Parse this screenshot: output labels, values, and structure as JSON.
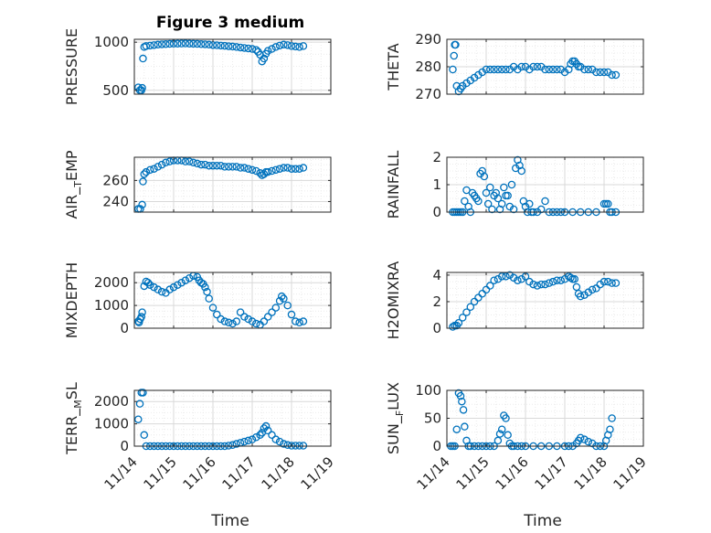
{
  "figure": {
    "title": "Figure 3 medium",
    "xlabel": "Time"
  },
  "x_ticks": [
    "11/14",
    "11/15",
    "11/16",
    "11/17",
    "11/18",
    "11/19"
  ],
  "colors": {
    "marker": "#0072BD",
    "axes": "#262626",
    "grid": "#e0e0e0",
    "background": "#ffffff"
  },
  "chart_data": [
    {
      "type": "scatter",
      "ylabel": "PRESSURE",
      "ylim": [
        460,
        1030
      ],
      "yticks": [
        500,
        1000
      ],
      "x_range": [
        "11/14",
        "11/19"
      ],
      "grid": true,
      "series": [
        {
          "x": [
            14.1,
            14.14,
            14.18,
            14.2,
            14.22,
            14.25,
            14.3,
            14.4,
            14.5,
            14.6,
            14.7,
            14.8,
            14.9,
            15.0,
            15.1,
            15.2,
            15.3,
            15.4,
            15.5,
            15.6,
            15.7,
            15.8,
            15.9,
            16.0,
            16.1,
            16.2,
            16.3,
            16.4,
            16.5,
            16.6,
            16.7,
            16.8,
            16.9,
            17.0,
            17.1,
            17.15,
            17.2,
            17.25,
            17.3,
            17.35,
            17.4,
            17.5,
            17.6,
            17.7,
            17.8,
            17.9,
            18.0,
            18.1,
            18.2,
            18.3
          ],
          "y": [
            530,
            500,
            500,
            525,
            830,
            950,
            960,
            965,
            970,
            975,
            978,
            980,
            982,
            985,
            985,
            986,
            987,
            985,
            984,
            982,
            980,
            978,
            975,
            970,
            968,
            965,
            962,
            958,
            955,
            950,
            945,
            940,
            935,
            930,
            920,
            900,
            870,
            800,
            830,
            880,
            910,
            930,
            950,
            965,
            975,
            970,
            960,
            955,
            950,
            960
          ]
        }
      ]
    },
    {
      "type": "scatter",
      "ylabel": "THETA",
      "ylim": [
        270,
        290
      ],
      "yticks": [
        270,
        280,
        290
      ],
      "x_range": [
        "11/14",
        "11/19"
      ],
      "grid": true,
      "series": [
        {
          "x": [
            14.15,
            14.18,
            14.2,
            14.22,
            14.25,
            14.3,
            14.35,
            14.4,
            14.5,
            14.6,
            14.7,
            14.8,
            14.9,
            15.0,
            15.1,
            15.2,
            15.3,
            15.4,
            15.5,
            15.6,
            15.7,
            15.8,
            15.9,
            16.0,
            16.1,
            16.2,
            16.3,
            16.4,
            16.5,
            16.6,
            16.7,
            16.8,
            16.9,
            17.0,
            17.1,
            17.15,
            17.2,
            17.25,
            17.3,
            17.35,
            17.4,
            17.5,
            17.6,
            17.7,
            17.8,
            17.9,
            18.0,
            18.1,
            18.2,
            18.3
          ],
          "y": [
            279,
            284,
            288,
            288,
            273,
            271,
            272,
            273,
            274,
            275,
            276,
            277,
            278,
            279,
            279,
            279,
            279,
            279,
            279,
            279,
            280,
            279,
            280,
            280,
            279,
            280,
            280,
            280,
            279,
            279,
            279,
            279,
            279,
            278,
            279,
            281,
            282,
            282,
            281,
            280,
            280,
            279,
            279,
            279,
            278,
            278,
            278,
            278,
            277,
            277
          ]
        }
      ]
    },
    {
      "type": "scatter",
      "ylabel": "AIR_TEMP",
      "ylim": [
        230,
        282
      ],
      "yticks": [
        240,
        260
      ],
      "x_range": [
        "11/14",
        "11/19"
      ],
      "grid": true,
      "series": [
        {
          "x": [
            14.1,
            14.15,
            14.2,
            14.22,
            14.25,
            14.3,
            14.4,
            14.5,
            14.6,
            14.7,
            14.8,
            14.9,
            15.0,
            15.1,
            15.2,
            15.3,
            15.4,
            15.5,
            15.6,
            15.7,
            15.8,
            15.9,
            16.0,
            16.1,
            16.2,
            16.3,
            16.4,
            16.5,
            16.6,
            16.7,
            16.8,
            16.9,
            17.0,
            17.1,
            17.2,
            17.25,
            17.3,
            17.35,
            17.4,
            17.5,
            17.6,
            17.7,
            17.8,
            17.9,
            18.0,
            18.1,
            18.2,
            18.3
          ],
          "y": [
            233,
            233,
            237,
            259,
            266,
            268,
            270,
            271,
            273,
            275,
            277,
            278,
            279,
            279,
            279,
            278,
            278,
            277,
            276,
            275,
            275,
            274,
            274,
            274,
            274,
            273,
            273,
            273,
            273,
            272,
            272,
            271,
            270,
            269,
            267,
            265,
            266,
            268,
            268,
            269,
            270,
            271,
            272,
            272,
            271,
            271,
            271,
            272
          ]
        }
      ]
    },
    {
      "type": "scatter",
      "ylabel": "RAINFALL",
      "ylim": [
        0,
        2
      ],
      "yticks": [
        0,
        1,
        2
      ],
      "x_range": [
        "11/14",
        "11/19"
      ],
      "grid": true,
      "series": [
        {
          "x": [
            14.15,
            14.2,
            14.25,
            14.3,
            14.35,
            14.4,
            14.45,
            14.5,
            14.55,
            14.6,
            14.65,
            14.7,
            14.75,
            14.8,
            14.85,
            14.9,
            14.95,
            15.0,
            15.05,
            15.1,
            15.15,
            15.2,
            15.25,
            15.3,
            15.35,
            15.4,
            15.45,
            15.5,
            15.55,
            15.6,
            15.65,
            15.7,
            15.75,
            15.8,
            15.85,
            15.9,
            15.95,
            16.0,
            16.05,
            16.1,
            16.15,
            16.2,
            16.3,
            16.4,
            16.5,
            16.6,
            16.7,
            16.8,
            16.9,
            17.0,
            17.2,
            17.4,
            17.6,
            17.8,
            18.0,
            18.05,
            18.1,
            18.15,
            18.2,
            18.3
          ],
          "y": [
            0,
            0,
            0,
            0,
            0,
            0,
            0.4,
            0.8,
            0.2,
            0,
            0.7,
            0.6,
            0.5,
            0.4,
            1.4,
            1.5,
            1.3,
            0.7,
            0.3,
            0.9,
            0.1,
            0.6,
            0.7,
            0.5,
            0.1,
            0.3,
            0.9,
            0.6,
            0.6,
            0.2,
            1.0,
            0.1,
            1.6,
            1.9,
            1.7,
            1.5,
            0.4,
            0.2,
            0,
            0.3,
            0,
            0,
            0,
            0.1,
            0.4,
            0,
            0,
            0,
            0,
            0,
            0,
            0,
            0,
            0,
            0.3,
            0.3,
            0.3,
            0,
            0,
            0
          ]
        }
      ]
    },
    {
      "type": "scatter",
      "ylabel": "MIXDEPTH",
      "ylim": [
        0,
        2450
      ],
      "yticks": [
        0,
        1000,
        2000
      ],
      "x_range": [
        "11/14",
        "11/19"
      ],
      "grid": true,
      "series": [
        {
          "x": [
            14.1,
            14.12,
            14.15,
            14.18,
            14.2,
            14.25,
            14.3,
            14.35,
            14.4,
            14.5,
            14.6,
            14.7,
            14.8,
            14.9,
            15.0,
            15.1,
            15.2,
            15.3,
            15.4,
            15.5,
            15.6,
            15.65,
            15.7,
            15.75,
            15.8,
            15.85,
            15.9,
            16.0,
            16.1,
            16.2,
            16.3,
            16.4,
            16.5,
            16.6,
            16.7,
            16.8,
            16.9,
            17.0,
            17.1,
            17.2,
            17.3,
            17.4,
            17.5,
            17.6,
            17.7,
            17.75,
            17.8,
            17.9,
            18.0,
            18.1,
            18.2,
            18.3
          ],
          "y": [
            300,
            250,
            400,
            500,
            700,
            1850,
            2050,
            2000,
            1900,
            1800,
            1700,
            1600,
            1550,
            1700,
            1800,
            1900,
            2000,
            2100,
            2200,
            2300,
            2250,
            2100,
            2000,
            1950,
            1800,
            1600,
            1300,
            900,
            600,
            400,
            300,
            250,
            200,
            300,
            700,
            500,
            400,
            300,
            200,
            150,
            300,
            500,
            700,
            900,
            1200,
            1400,
            1300,
            1000,
            600,
            300,
            250,
            300
          ]
        }
      ]
    },
    {
      "type": "scatter",
      "ylabel": "H2OMIXRA",
      "ylim": [
        0,
        4.2
      ],
      "yticks": [
        0,
        2,
        4
      ],
      "x_range": [
        "11/14",
        "11/19"
      ],
      "grid": true,
      "series": [
        {
          "x": [
            14.15,
            14.2,
            14.25,
            14.3,
            14.4,
            14.5,
            14.6,
            14.7,
            14.8,
            14.9,
            15.0,
            15.1,
            15.2,
            15.3,
            15.4,
            15.5,
            15.6,
            15.7,
            15.8,
            15.9,
            16.0,
            16.1,
            16.2,
            16.3,
            16.4,
            16.5,
            16.6,
            16.7,
            16.8,
            16.9,
            17.0,
            17.1,
            17.15,
            17.2,
            17.25,
            17.3,
            17.35,
            17.4,
            17.5,
            17.6,
            17.7,
            17.8,
            17.9,
            18.0,
            18.1,
            18.2,
            18.3
          ],
          "y": [
            0.1,
            0.2,
            0.2,
            0.4,
            0.8,
            1.2,
            1.6,
            2.0,
            2.3,
            2.6,
            2.9,
            3.2,
            3.6,
            3.7,
            3.9,
            3.9,
            4.0,
            3.8,
            3.6,
            3.7,
            3.9,
            3.5,
            3.3,
            3.2,
            3.3,
            3.3,
            3.4,
            3.5,
            3.6,
            3.6,
            3.7,
            3.9,
            3.8,
            3.7,
            3.7,
            3.1,
            2.6,
            2.4,
            2.5,
            2.7,
            2.9,
            3.0,
            3.3,
            3.5,
            3.5,
            3.4,
            3.4
          ]
        }
      ]
    },
    {
      "type": "scatter",
      "ylabel": "TERR_MSL",
      "ylim": [
        0,
        2500
      ],
      "yticks": [
        0,
        1000,
        2000
      ],
      "x_range": [
        "11/14",
        "11/19"
      ],
      "grid": true,
      "series": [
        {
          "x": [
            14.1,
            14.14,
            14.18,
            14.22,
            14.25,
            14.3,
            14.4,
            14.5,
            14.6,
            14.7,
            14.8,
            14.9,
            15.0,
            15.1,
            15.2,
            15.3,
            15.4,
            15.5,
            15.6,
            15.7,
            15.8,
            15.9,
            16.0,
            16.1,
            16.2,
            16.3,
            16.4,
            16.5,
            16.6,
            16.7,
            16.8,
            16.9,
            17.0,
            17.1,
            17.2,
            17.25,
            17.3,
            17.35,
            17.4,
            17.5,
            17.6,
            17.7,
            17.8,
            17.9,
            18.0,
            18.1,
            18.2,
            18.3
          ],
          "y": [
            1200,
            1900,
            2400,
            2400,
            500,
            0,
            0,
            0,
            0,
            0,
            0,
            0,
            0,
            0,
            0,
            0,
            0,
            0,
            0,
            0,
            0,
            0,
            0,
            0,
            0,
            0,
            20,
            50,
            100,
            150,
            200,
            250,
            300,
            400,
            500,
            600,
            800,
            900,
            700,
            500,
            300,
            200,
            100,
            50,
            20,
            20,
            20,
            20
          ]
        }
      ]
    },
    {
      "type": "scatter",
      "ylabel": "SUN_FLUX",
      "ylim": [
        0,
        100
      ],
      "yticks": [
        0,
        50,
        100
      ],
      "x_range": [
        "11/14",
        "11/19"
      ],
      "grid": true,
      "series": [
        {
          "x": [
            14.1,
            14.15,
            14.2,
            14.25,
            14.3,
            14.35,
            14.38,
            14.42,
            14.45,
            14.5,
            14.55,
            14.6,
            14.7,
            14.8,
            14.9,
            15.0,
            15.1,
            15.2,
            15.3,
            15.35,
            15.4,
            15.45,
            15.5,
            15.55,
            15.6,
            15.65,
            15.7,
            15.8,
            15.9,
            16.0,
            16.2,
            16.4,
            16.6,
            16.8,
            17.0,
            17.1,
            17.2,
            17.3,
            17.35,
            17.4,
            17.5,
            17.6,
            17.7,
            17.8,
            17.9,
            18.0,
            18.05,
            18.1,
            18.15,
            18.2
          ],
          "y": [
            0,
            0,
            0,
            30,
            95,
            90,
            80,
            65,
            35,
            10,
            0,
            0,
            0,
            0,
            0,
            0,
            0,
            0,
            10,
            22,
            30,
            55,
            50,
            20,
            5,
            0,
            0,
            0,
            0,
            0,
            0,
            0,
            0,
            0,
            0,
            0,
            0,
            5,
            10,
            15,
            12,
            8,
            5,
            0,
            0,
            0,
            10,
            20,
            30,
            50
          ]
        }
      ]
    }
  ]
}
